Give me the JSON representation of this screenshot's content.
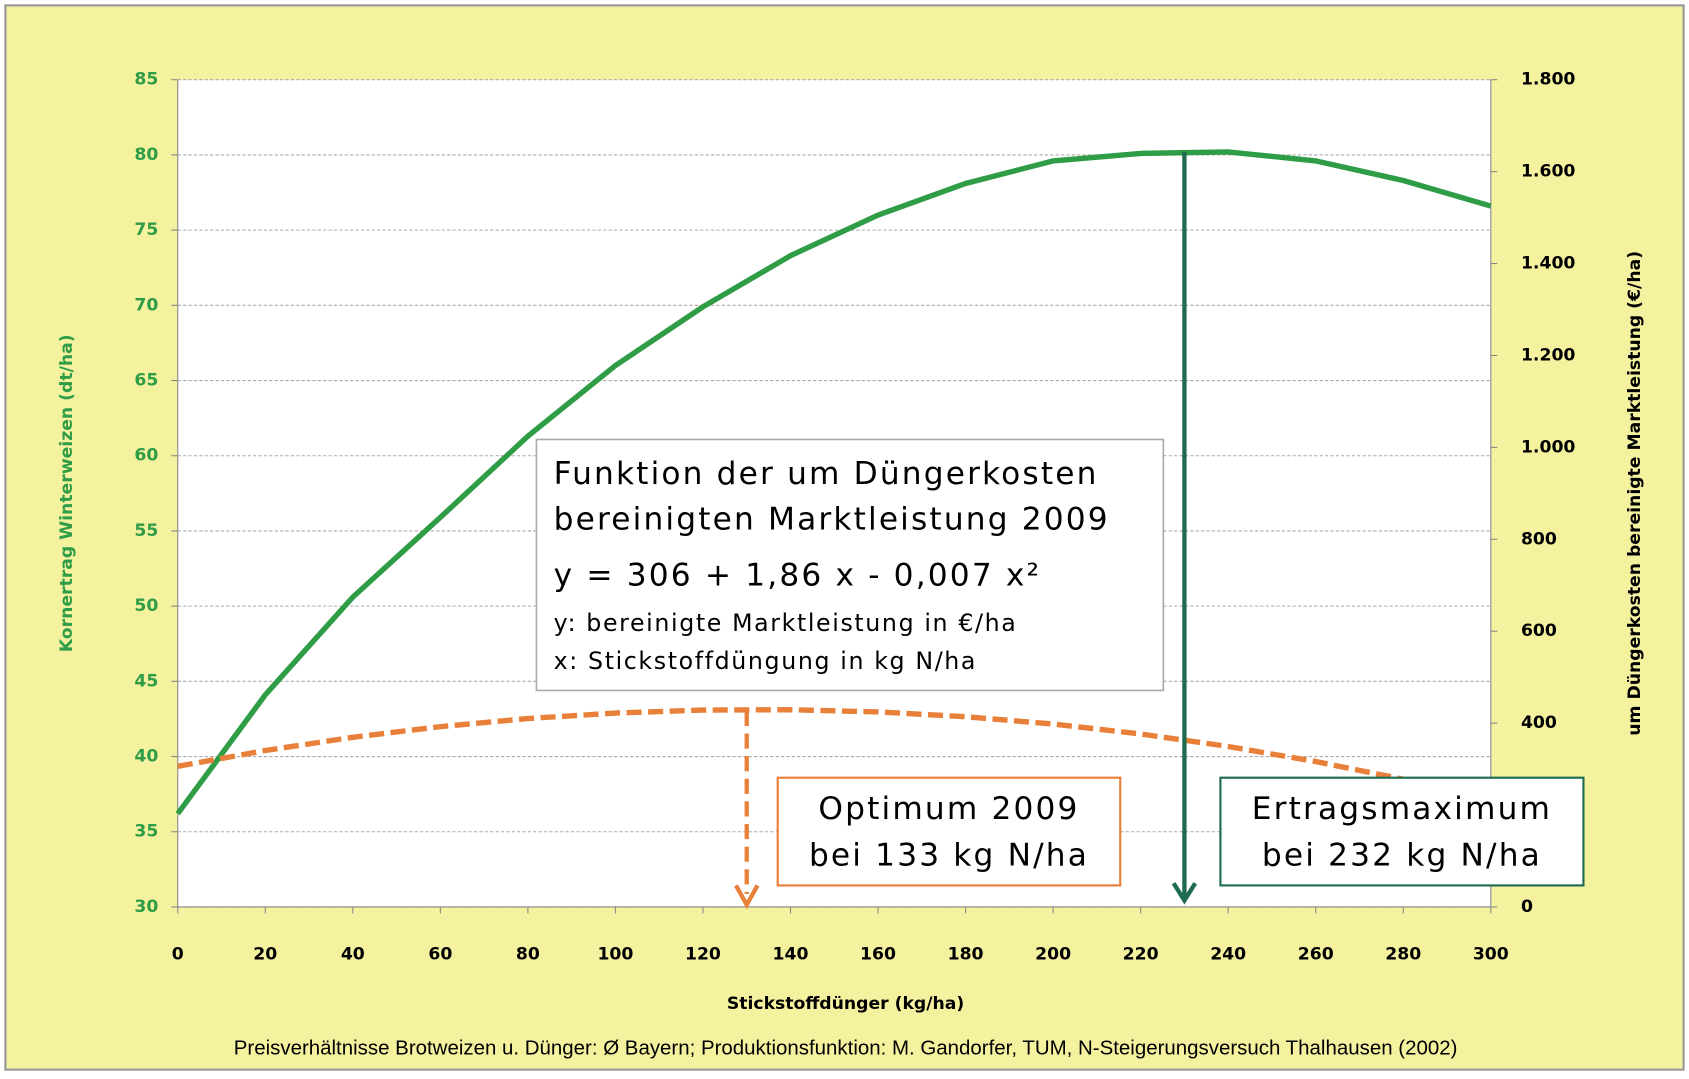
{
  "chart_data": {
    "type": "line",
    "xlabel": "Stickstoffdünger (kg/ha)",
    "ylabel": "Kornertrag  Winterweizen (dt/ha)",
    "y2label": "um Düngerkosten bereinigte Marktleistung (€/ha)",
    "footer": "Preisverhältnisse Brotweizen u. Dünger: Ø Bayern; Produktionsfunktion: M. Gandorfer, TUM, N-Steigerungsversuch Thalhausen (2002)",
    "x": [
      0,
      20,
      40,
      60,
      80,
      100,
      120,
      140,
      160,
      180,
      200,
      220,
      240,
      260,
      280,
      300
    ],
    "series": [
      {
        "color": "#2f9c46",
        "values": [
          36.2,
          44.1,
          50.6,
          55.9,
          61.3,
          66.0,
          69.9,
          73.3,
          76.0,
          78.1,
          79.6,
          80.1,
          80.2,
          79.6,
          78.3,
          76.6
        ]
      },
      {
        "color": "#e8803a",
        "axis": "y2",
        "dashed": true,
        "values": [
          306,
          340.4,
          369.2,
          392.4,
          410,
          422,
          428.4,
          429.2,
          424.4,
          414,
          398,
          376.4,
          349.2,
          316.4,
          278,
          234
        ]
      }
    ],
    "xlim": [
      0,
      300
    ],
    "xticks": [
      0,
      20,
      40,
      60,
      80,
      100,
      120,
      140,
      160,
      180,
      200,
      220,
      240,
      260,
      280,
      300
    ],
    "ylim": [
      30,
      85
    ],
    "yticks": [
      30,
      35,
      40,
      45,
      50,
      55,
      60,
      65,
      70,
      75,
      80,
      85
    ],
    "y2lim": [
      0,
      1800
    ],
    "y2ticks": [
      0,
      200,
      400,
      600,
      800,
      {
        "value": 1000,
        "label": "1.000"
      },
      {
        "value": 1200,
        "label": "1.200"
      },
      {
        "value": 1400,
        "label": "1.400"
      },
      {
        "value": 1600,
        "label": "1.600"
      },
      {
        "value": 1800,
        "label": "1.800"
      }
    ],
    "grid": true,
    "function_box": [
      "Funktion der um Düngerkosten",
      "bereinigten Marktleistung 2009",
      "y = 306 + 1,86 x - 0,007 x²",
      "y: bereinigte Marktleistung in €/ha",
      "x: Stickstoffdüngung in kg N/ha"
    ],
    "annotations": [
      {
        "text": [
          "Optimum 2009",
          "bei 133 kg N/ha"
        ],
        "x": 130,
        "color": "#e8803a"
      },
      {
        "text": [
          "Ertragsmaximum",
          "bei 232 kg N/ha"
        ],
        "x": 230,
        "color": "#1f6b50"
      }
    ]
  }
}
